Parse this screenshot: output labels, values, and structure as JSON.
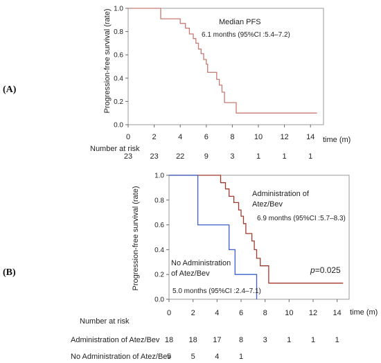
{
  "chart_data": [
    {
      "type": "line",
      "panel": "(A)",
      "ylabel": "Progression-free survival (rate)",
      "xlabel": "time (m)",
      "xlim": [
        0,
        15
      ],
      "ylim": [
        0,
        1
      ],
      "x_ticks": [
        0,
        2,
        4,
        6,
        8,
        10,
        12,
        14
      ],
      "y_ticks": [
        "0.0",
        "0.2",
        "0.4",
        "0.6",
        "0.8",
        "1.0"
      ],
      "annotation_title": "Median PFS",
      "annotation": "6.1 months (95%CI :5.4–7.2)",
      "series": [
        {
          "color": "#c87a72",
          "points": [
            [
              0,
              1
            ],
            [
              2.5,
              1
            ],
            [
              2.5,
              0.91
            ],
            [
              4,
              0.91
            ],
            [
              4,
              0.87
            ],
            [
              4.4,
              0.87
            ],
            [
              4.4,
              0.83
            ],
            [
              4.7,
              0.83
            ],
            [
              4.7,
              0.78
            ],
            [
              5.0,
              0.78
            ],
            [
              5.0,
              0.74
            ],
            [
              5.2,
              0.74
            ],
            [
              5.2,
              0.7
            ],
            [
              5.4,
              0.7
            ],
            [
              5.4,
              0.65
            ],
            [
              5.6,
              0.65
            ],
            [
              5.6,
              0.61
            ],
            [
              5.8,
              0.61
            ],
            [
              5.8,
              0.56
            ],
            [
              6.0,
              0.56
            ],
            [
              6.0,
              0.52
            ],
            [
              6.1,
              0.52
            ],
            [
              6.1,
              0.45
            ],
            [
              6.8,
              0.45
            ],
            [
              6.8,
              0.39
            ],
            [
              7.0,
              0.39
            ],
            [
              7.0,
              0.34
            ],
            [
              7.2,
              0.34
            ],
            [
              7.2,
              0.28
            ],
            [
              7.4,
              0.28
            ],
            [
              7.4,
              0.19
            ],
            [
              8.3,
              0.19
            ],
            [
              8.3,
              0.1
            ],
            [
              14.5,
              0.1
            ]
          ]
        }
      ],
      "risk_title": "Number at risk",
      "risk_rows": [
        {
          "label": "",
          "values": [
            "23",
            "23",
            "22",
            "9",
            "3",
            "1",
            "1",
            "1"
          ]
        }
      ]
    },
    {
      "type": "line",
      "panel": "(B)",
      "ylabel": "Progression-free survival (rate)",
      "xlabel": "time (m)",
      "xlim": [
        0,
        15
      ],
      "ylim": [
        0,
        1
      ],
      "x_ticks": [
        0,
        2,
        4,
        6,
        8,
        10,
        12,
        14
      ],
      "y_ticks": [
        "0.0",
        "0.2",
        "0.4",
        "0.6",
        "0.8",
        "1.0"
      ],
      "pvalue_prefix": "p",
      "pvalue_value": "=0.025",
      "series": [
        {
          "name": "Administration of Atez/Bev",
          "label_lines": [
            "Administration of",
            "Atez/Bev"
          ],
          "median": "6.9 months (95%CI :5.7–8.3)",
          "color": "#a0392b",
          "points": [
            [
              0,
              1
            ],
            [
              4.3,
              1
            ],
            [
              4.3,
              0.94
            ],
            [
              4.7,
              0.94
            ],
            [
              4.7,
              0.89
            ],
            [
              5.0,
              0.89
            ],
            [
              5.0,
              0.83
            ],
            [
              5.4,
              0.83
            ],
            [
              5.4,
              0.78
            ],
            [
              5.8,
              0.78
            ],
            [
              5.8,
              0.72
            ],
            [
              6.0,
              0.72
            ],
            [
              6.0,
              0.67
            ],
            [
              6.2,
              0.67
            ],
            [
              6.2,
              0.61
            ],
            [
              6.4,
              0.61
            ],
            [
              6.4,
              0.53
            ],
            [
              6.9,
              0.53
            ],
            [
              6.9,
              0.47
            ],
            [
              7.1,
              0.47
            ],
            [
              7.1,
              0.4
            ],
            [
              7.3,
              0.4
            ],
            [
              7.3,
              0.33
            ],
            [
              7.6,
              0.33
            ],
            [
              7.6,
              0.27
            ],
            [
              8.3,
              0.27
            ],
            [
              8.3,
              0.13
            ],
            [
              14.5,
              0.13
            ]
          ]
        },
        {
          "name": "No Administration of Atez/Bev",
          "label_lines": [
            "No Administration",
            "of Atez/Bev"
          ],
          "median": "5.0 months (95%CI :2.4–7.1)",
          "color": "#3a5fcd",
          "points": [
            [
              0,
              1
            ],
            [
              2.4,
              1
            ],
            [
              2.4,
              0.6
            ],
            [
              5.0,
              0.6
            ],
            [
              5.0,
              0.4
            ],
            [
              5.5,
              0.4
            ],
            [
              5.5,
              0.2
            ],
            [
              7.3,
              0.2
            ],
            [
              7.3,
              0.0
            ]
          ]
        }
      ],
      "risk_title": "Number at risk",
      "risk_rows": [
        {
          "label": "Administration of Atez/Bev",
          "values": [
            "18",
            "18",
            "17",
            "8",
            "3",
            "1",
            "1",
            "1"
          ]
        },
        {
          "label": "No Administration of Atez/Bev",
          "values": [
            "5",
            "5",
            "4",
            "1",
            "",
            "",
            "",
            ""
          ]
        }
      ]
    }
  ]
}
